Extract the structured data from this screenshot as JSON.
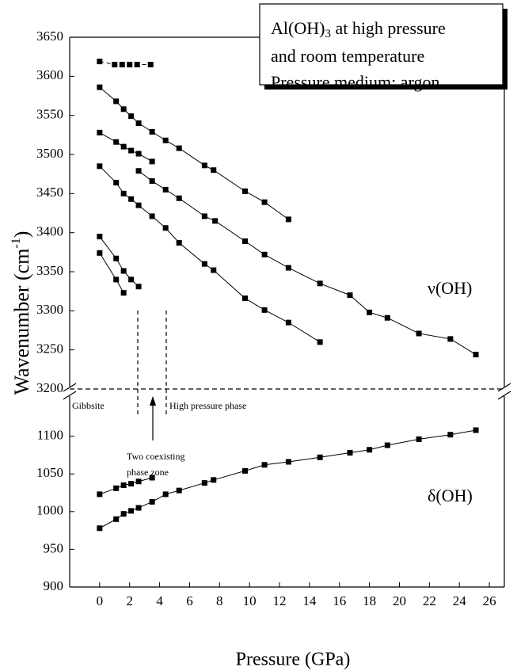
{
  "chart_data": [
    {
      "type": "line",
      "y_label": [
        "Wavenumber (cm",
        "-1",
        ")"
      ],
      "legend_lines": [
        [
          "Al(OH)",
          "3",
          " at high pressure"
        ],
        [
          "and room temperature"
        ],
        [
          "Pressure medium: argon"
        ]
      ],
      "annotations": [
        "ν(OH)",
        "Gibbsite",
        "High pressure phase",
        "Two coexisting",
        "phase zone"
      ],
      "xlim": [
        -2,
        27
      ],
      "ylim": [
        3200,
        3650
      ],
      "yticks": [
        3200,
        3250,
        3300,
        3350,
        3400,
        3450,
        3500,
        3550,
        3600,
        3650
      ],
      "series": [
        {
          "color": "#000000",
          "style": "dashed",
          "x": [
            0,
            1,
            1.5,
            2,
            2.5,
            3.4
          ],
          "values": [
            3619,
            3615,
            3615,
            3615,
            3615,
            3615
          ]
        },
        {
          "color": "#000000",
          "style": "solid",
          "x": [
            0,
            1.1,
            1.6,
            2.1,
            2.6,
            3.5,
            4.4,
            5.3,
            7.0,
            7.6,
            9.7,
            11.0,
            12.6
          ],
          "values": [
            3586,
            3568,
            3558,
            3549,
            3540,
            3529,
            3518,
            3508,
            3486,
            3480,
            3453,
            3439,
            3417
          ]
        },
        {
          "color": "#000000",
          "style": "solid",
          "x": [
            0,
            1.1,
            1.6,
            2.1,
            2.6,
            3.5
          ],
          "values": [
            3528,
            3516,
            3510,
            3505,
            3501,
            3491
          ]
        },
        {
          "color": "#000000",
          "style": "solid",
          "x": [
            2.6,
            3.5,
            4.4,
            5.3,
            7.0,
            7.7,
            9.7,
            11.0,
            12.6,
            14.7,
            16.7,
            18.0,
            19.2,
            21.3,
            23.4,
            25.1
          ],
          "values": [
            3479,
            3466,
            3455,
            3444,
            3421,
            3415,
            3389,
            3372,
            3355,
            3335,
            3320,
            3298,
            3291,
            3271,
            3264,
            3244
          ]
        },
        {
          "color": "#000000",
          "style": "solid",
          "x": [
            0,
            1.1,
            1.6,
            2.1,
            2.6,
            3.5,
            4.4,
            5.3,
            7.0,
            7.6,
            9.7,
            11.0,
            12.6,
            14.7
          ],
          "values": [
            3485,
            3464,
            3450,
            3443,
            3435,
            3421,
            3406,
            3387,
            3360,
            3352,
            3316,
            3301,
            3285,
            3260
          ]
        },
        {
          "color": "#000000",
          "style": "solid",
          "x": [
            0,
            1.1,
            1.6,
            2.1,
            2.6
          ],
          "values": [
            3395,
            3367,
            3351,
            3340,
            3331
          ]
        },
        {
          "color": "#000000",
          "style": "solid",
          "x": [
            0,
            1.1,
            1.6
          ],
          "values": [
            3374,
            3340,
            3323
          ]
        }
      ]
    },
    {
      "type": "line",
      "x_label": "Pressure (GPa)",
      "annotations": [
        "δ(OH)"
      ],
      "xlim": [
        -2,
        27
      ],
      "ylim": [
        900,
        1150
      ],
      "xticks": [
        0,
        2,
        4,
        6,
        8,
        10,
        12,
        14,
        16,
        18,
        20,
        22,
        24,
        26
      ],
      "yticks": [
        900,
        950,
        1000,
        1050,
        1100
      ],
      "series": [
        {
          "color": "#000000",
          "style": "solid",
          "x": [
            0,
            1.1,
            1.6,
            2.1,
            2.6,
            3.5
          ],
          "values": [
            1023,
            1031,
            1035,
            1037,
            1040,
            1045
          ]
        },
        {
          "color": "#000000",
          "style": "solid",
          "x": [
            0,
            1.1,
            1.6,
            2.1,
            2.6,
            3.5,
            4.4,
            5.3,
            7.0,
            7.6,
            9.7,
            11.0,
            12.6,
            14.7,
            16.7,
            18.0,
            19.2,
            21.3,
            23.4,
            25.1
          ],
          "values": [
            978,
            990,
            997,
            1001,
            1005,
            1013,
            1023,
            1028,
            1038,
            1042,
            1054,
            1062,
            1066,
            1072,
            1078,
            1082,
            1088,
            1096,
            1102,
            1108
          ]
        }
      ]
    }
  ]
}
